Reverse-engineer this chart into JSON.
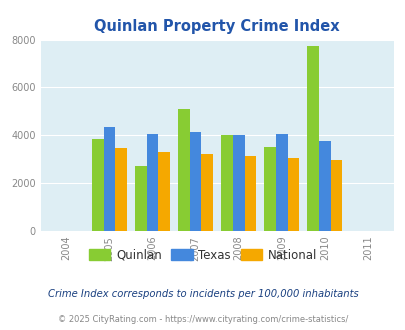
{
  "title": "Quinlan Property Crime Index",
  "title_color": "#2255aa",
  "years": [
    2004,
    2005,
    2006,
    2007,
    2008,
    2009,
    2010,
    2011
  ],
  "data_years": [
    2005,
    2006,
    2007,
    2008,
    2009,
    2010
  ],
  "quinlan": [
    3850,
    2700,
    5100,
    4000,
    3500,
    7750
  ],
  "texas": [
    4350,
    4050,
    4150,
    4000,
    4050,
    3750
  ],
  "national": [
    3450,
    3300,
    3200,
    3150,
    3050,
    2950
  ],
  "quinlan_color": "#88cc33",
  "texas_color": "#4488dd",
  "national_color": "#f5a800",
  "ylim": [
    0,
    8000
  ],
  "yticks": [
    0,
    2000,
    4000,
    6000,
    8000
  ],
  "bar_width": 0.27,
  "bg_color": "#deeef4",
  "legend_labels": [
    "Quinlan",
    "Texas",
    "National"
  ],
  "footnote1": "Crime Index corresponds to incidents per 100,000 inhabitants",
  "footnote2": "© 2025 CityRating.com - https://www.cityrating.com/crime-statistics/",
  "footnote1_color": "#1a4080",
  "footnote2_color": "#888888",
  "tick_color": "#888888",
  "grid_color": "#ffffff",
  "xlim_min": 2003.4,
  "xlim_max": 2011.6
}
